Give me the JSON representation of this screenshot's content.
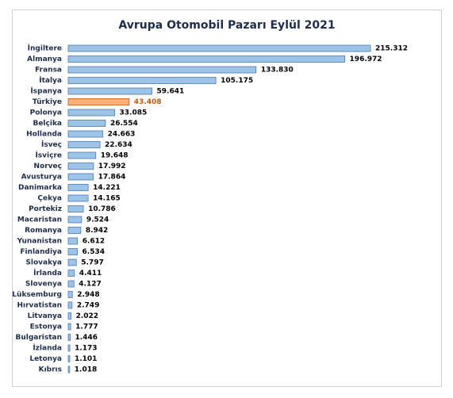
{
  "chart_data": {
    "type": "bar",
    "orientation": "horizontal",
    "title": "Avrupa Otomobil Pazarı Eylül 2021",
    "categories": [
      "İngiltere",
      "Almanya",
      "Fransa",
      "İtalya",
      "İspanya",
      "Türkiye",
      "Polonya",
      "Belçika",
      "Hollanda",
      "İsveç",
      "İsviçre",
      "Norveç",
      "Avusturya",
      "Danimarka",
      "Çekya",
      "Portekiz",
      "Macaristan",
      "Romanya",
      "Yunanistan",
      "Finlandiya",
      "Slovakya",
      "İrlanda",
      "Slovenya",
      "Lüksemburg",
      "Hırvatistan",
      "Litvanya",
      "Estonya",
      "Bulgaristan",
      "İzlanda",
      "Letonya",
      "Kıbrıs"
    ],
    "values": [
      215312,
      196972,
      133830,
      105175,
      59641,
      43408,
      33085,
      26554,
      24663,
      22634,
      19648,
      17992,
      17864,
      14221,
      14165,
      10786,
      9524,
      8942,
      6612,
      6534,
      5797,
      4411,
      4127,
      2948,
      2749,
      2022,
      1777,
      1446,
      1173,
      1101,
      1018
    ],
    "value_labels": [
      "215.312",
      "196.972",
      "133.830",
      "105.175",
      "59.641",
      "43.408",
      "33.085",
      "26.554",
      "24.663",
      "22.634",
      "19.648",
      "17.992",
      "17.864",
      "14.221",
      "14.165",
      "10.786",
      "9.524",
      "8.942",
      "6.612",
      "6.534",
      "5.797",
      "4.411",
      "4.127",
      "2.948",
      "2.749",
      "2.022",
      "1.777",
      "1.446",
      "1.173",
      "1.101",
      "1.018"
    ],
    "colors": [
      "#9dc3e6",
      "#9dc3e6",
      "#9dc3e6",
      "#9dc3e6",
      "#9dc3e6",
      "#f4b183",
      "#9dc3e6",
      "#9dc3e6",
      "#9dc3e6",
      "#9dc3e6",
      "#9dc3e6",
      "#9dc3e6",
      "#9dc3e6",
      "#9dc3e6",
      "#9dc3e6",
      "#9dc3e6",
      "#9dc3e6",
      "#9dc3e6",
      "#9dc3e6",
      "#9dc3e6",
      "#9dc3e6",
      "#9dc3e6",
      "#9dc3e6",
      "#9dc3e6",
      "#9dc3e6",
      "#9dc3e6",
      "#9dc3e6",
      "#9dc3e6",
      "#9dc3e6",
      "#9dc3e6",
      "#9dc3e6"
    ],
    "value_label_colors": [
      "#000000",
      "#000000",
      "#000000",
      "#000000",
      "#000000",
      "#c55a11",
      "#000000",
      "#000000",
      "#000000",
      "#000000",
      "#000000",
      "#000000",
      "#000000",
      "#000000",
      "#000000",
      "#000000",
      "#000000",
      "#000000",
      "#000000",
      "#000000",
      "#000000",
      "#000000",
      "#000000",
      "#000000",
      "#000000",
      "#000000",
      "#000000",
      "#000000",
      "#000000",
      "#000000",
      "#000000"
    ]
  }
}
